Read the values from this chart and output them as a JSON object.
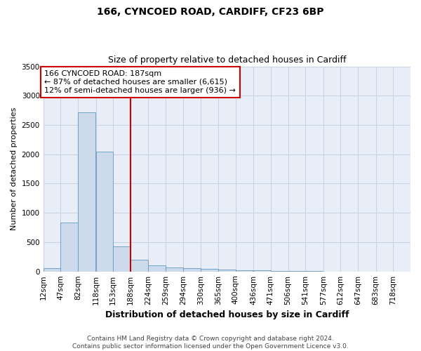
{
  "title_line1": "166, CYNCOED ROAD, CARDIFF, CF23 6BP",
  "title_line2": "Size of property relative to detached houses in Cardiff",
  "xlabel": "Distribution of detached houses by size in Cardiff",
  "ylabel": "Number of detached properties",
  "footer_line1": "Contains HM Land Registry data © Crown copyright and database right 2024.",
  "footer_line2": "Contains public sector information licensed under the Open Government Licence v3.0.",
  "annotation_line1": "166 CYNCOED ROAD: 187sqm",
  "annotation_line2": "← 87% of detached houses are smaller (6,615)",
  "annotation_line3": "12% of semi-detached houses are larger (936) →",
  "bin_labels": [
    "12sqm",
    "47sqm",
    "82sqm",
    "118sqm",
    "153sqm",
    "188sqm",
    "224sqm",
    "259sqm",
    "294sqm",
    "330sqm",
    "365sqm",
    "400sqm",
    "436sqm",
    "471sqm",
    "506sqm",
    "541sqm",
    "577sqm",
    "612sqm",
    "647sqm",
    "683sqm",
    "718sqm"
  ],
  "bin_edges": [
    12,
    47,
    82,
    118,
    153,
    188,
    224,
    259,
    294,
    330,
    365,
    400,
    436,
    471,
    506,
    541,
    577,
    612,
    647,
    683,
    718
  ],
  "bar_heights": [
    55,
    830,
    2720,
    2050,
    430,
    195,
    105,
    70,
    55,
    50,
    30,
    25,
    15,
    10,
    5,
    5,
    2,
    2,
    1,
    1,
    1
  ],
  "bar_color": "#ccdaeb",
  "bar_edge_color": "#6699bb",
  "grid_color": "#c8d4e4",
  "background_color": "#e8eef8",
  "vline_color": "#cc0000",
  "vline_x": 188,
  "annotation_box_facecolor": "#ffffff",
  "annotation_box_edgecolor": "#cc0000",
  "ylim": [
    0,
    3500
  ],
  "yticks": [
    0,
    500,
    1000,
    1500,
    2000,
    2500,
    3000,
    3500
  ],
  "title_fontsize": 10,
  "subtitle_fontsize": 9,
  "ylabel_fontsize": 8,
  "xlabel_fontsize": 9,
  "tick_fontsize": 7.5,
  "footer_fontsize": 6.5,
  "annotation_fontsize": 8
}
